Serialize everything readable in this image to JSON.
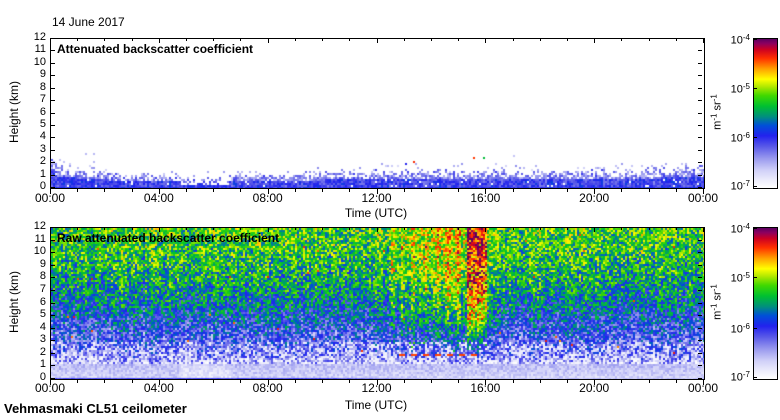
{
  "page": {
    "date_label": "14 June 2017",
    "credit": "Vehmasmaki CL51 ceilometer"
  },
  "chart_data": [
    {
      "type": "heatmap",
      "panel": "top",
      "title": "Attenuated backscatter coefficient",
      "xlabel": "Time (UTC)",
      "ylabel": "Height (km)",
      "x_tick_labels": [
        "00:00",
        "04:00",
        "08:00",
        "12:00",
        "16:00",
        "20:00",
        "00:00"
      ],
      "x_major_tick_hours": [
        0,
        4,
        8,
        12,
        16,
        20,
        24
      ],
      "x_minor_tick_interval_hours": 1,
      "xlim_hours": [
        0,
        24
      ],
      "y_tick_km": [
        0,
        1,
        2,
        3,
        4,
        5,
        6,
        7,
        8,
        9,
        10,
        11,
        12
      ],
      "ylim_km": [
        0,
        12
      ],
      "colorbar": {
        "unit": "m^-1 sr^-1",
        "tick_labels": [
          "10^-4",
          "10^-5",
          "10^-6",
          "10^-7"
        ],
        "scale": "log",
        "min": 1e-07,
        "max": 0.0001
      },
      "content": {
        "description": "Boundary-layer aerosol (blue, ~1e-6 m-1 sr-1) below ~1-2 km all day, clear white air above, scattered multicolour cloud/precip detections near 2-2.5 km between ~12:30 and 16:00, slightly deeper layer at both midnight edges.",
        "boundary_layer_top_km": [
          [
            0,
            2.2
          ],
          [
            1,
            1.7
          ],
          [
            2.5,
            1.35
          ],
          [
            5,
            1.1
          ],
          [
            6.5,
            1.15
          ],
          [
            8,
            1.3
          ],
          [
            10,
            1.45
          ],
          [
            12,
            1.55
          ],
          [
            14,
            1.6
          ],
          [
            16,
            1.6
          ],
          [
            18,
            1.5
          ],
          [
            20,
            1.6
          ],
          [
            22,
            1.7
          ],
          [
            24,
            2.0
          ]
        ],
        "dense_layer_fraction": 0.5,
        "clear_streak_hours": [
          4.8,
          6.6
        ],
        "cloud_dots": {
          "time_range_hours": [
            12.4,
            15.9
          ],
          "height_range_km": [
            1.9,
            2.6
          ],
          "dense_time_range_hours": [
            14.3,
            15.6
          ]
        }
      }
    },
    {
      "type": "heatmap",
      "panel": "bottom",
      "title": "Raw attenuated backscatter coefficient",
      "xlabel": "Time (UTC)",
      "ylabel": "Height (km)",
      "x_tick_labels": [
        "00:00",
        "04:00",
        "08:00",
        "12:00",
        "16:00",
        "20:00",
        "00:00"
      ],
      "x_major_tick_hours": [
        0,
        4,
        8,
        12,
        16,
        20,
        24
      ],
      "x_minor_tick_interval_hours": 1,
      "xlim_hours": [
        0,
        24
      ],
      "y_tick_km": [
        0,
        1,
        2,
        3,
        4,
        5,
        6,
        7,
        8,
        9,
        10,
        11,
        12
      ],
      "ylim_km": [
        0,
        12
      ],
      "colorbar": {
        "unit": "m^-1 sr^-1",
        "tick_labels": [
          "10^-4",
          "10^-5",
          "10^-6",
          "10^-7"
        ],
        "scale": "log",
        "min": 1e-07,
        "max": 0.0001
      },
      "content": {
        "description": "Raw signal dominated by range-dependent noise: light lavender/white low values below ~1.5 km, blue-white speckle 1-3 km, blue-green mix 3-8 km, green-yellow speckle above ~8 km. Daylight noise enhancement ~12:00-16:00 with orange-red vertical streaks, strongest band ~15:20-16:00 reaching dark red near the top. Red dotted cloud-base line near 2 km between ~12:50 and 15:50 with green specks above it.",
        "noise_level_profile_km": [
          [
            0,
            0.07
          ],
          [
            1,
            0.1
          ],
          [
            2,
            0.22
          ],
          [
            4,
            0.33
          ],
          [
            6,
            0.44
          ],
          [
            8,
            0.52
          ],
          [
            10,
            0.57
          ],
          [
            12,
            0.6
          ]
        ],
        "daytime_enhancement": {
          "time_range_hours": [
            11.5,
            16.2
          ],
          "peak_hour": 14.6,
          "streak_center_hours": [
            12.55,
            12.9,
            13.3,
            13.75,
            14.2,
            14.6,
            14.95
          ],
          "strong_band_hours": [
            15.25,
            16.0
          ]
        },
        "cloud_base_line": {
          "time_range_hours": [
            12.8,
            15.8
          ],
          "height_km": 2.0
        },
        "green_specks": {
          "time_range_hours": [
            12.4,
            15.6
          ],
          "height_range_km": [
            2.2,
            4.0
          ]
        }
      }
    }
  ],
  "colors": {
    "background": "#ffffff",
    "axis": "#000000",
    "text": "#000000",
    "colormap_stops": [
      [
        0.0,
        "#ffffff"
      ],
      [
        0.05,
        "#eeeefc"
      ],
      [
        0.12,
        "#d0d0f8"
      ],
      [
        0.2,
        "#9898ee"
      ],
      [
        0.28,
        "#5858e8"
      ],
      [
        0.35,
        "#2222ee"
      ],
      [
        0.42,
        "#0050d8"
      ],
      [
        0.48,
        "#00907c"
      ],
      [
        0.55,
        "#00c030"
      ],
      [
        0.62,
        "#40d800"
      ],
      [
        0.68,
        "#b0e800"
      ],
      [
        0.73,
        "#ffff00"
      ],
      [
        0.8,
        "#ffa000"
      ],
      [
        0.87,
        "#ff3000"
      ],
      [
        0.93,
        "#cc0022"
      ],
      [
        0.97,
        "#8c0060"
      ],
      [
        1.0,
        "#5c0060"
      ]
    ]
  }
}
